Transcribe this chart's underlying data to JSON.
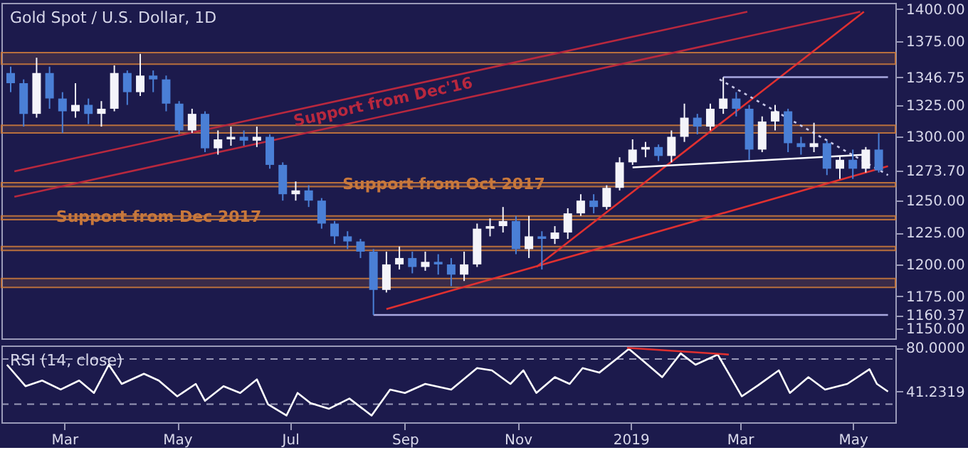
{
  "chart_data": [
    {
      "type": "candlestick",
      "title": "Gold Spot / U.S. Dollar, 1D",
      "tick_labels": "y",
      "x": [
        "2018-01-31",
        "2018-02-07",
        "2018-02-14",
        "2018-02-21",
        "2018-02-28",
        "2018-03-07",
        "2018-03-14",
        "2018-03-21",
        "2018-03-28",
        "2018-04-04",
        "2018-04-11",
        "2018-04-18",
        "2018-04-25",
        "2018-05-02",
        "2018-05-09",
        "2018-05-16",
        "2018-05-23",
        "2018-05-30",
        "2018-06-06",
        "2018-06-13",
        "2018-06-20",
        "2018-06-27",
        "2018-07-04",
        "2018-07-11",
        "2018-07-18",
        "2018-07-25",
        "2018-08-01",
        "2018-08-08",
        "2018-08-15",
        "2018-08-22",
        "2018-08-29",
        "2018-09-05",
        "2018-09-12",
        "2018-09-19",
        "2018-09-26",
        "2018-10-03",
        "2018-10-10",
        "2018-10-17",
        "2018-10-24",
        "2018-10-31",
        "2018-11-07",
        "2018-11-14",
        "2018-11-21",
        "2018-11-28",
        "2018-12-05",
        "2018-12-12",
        "2018-12-19",
        "2018-12-26",
        "2019-01-02",
        "2019-01-09",
        "2019-01-16",
        "2019-01-23",
        "2019-01-30",
        "2019-02-06",
        "2019-02-13",
        "2019-02-20",
        "2019-02-27",
        "2019-03-06",
        "2019-03-13",
        "2019-03-20",
        "2019-03-27",
        "2019-04-03",
        "2019-04-10",
        "2019-04-17",
        "2019-04-24",
        "2019-05-01",
        "2019-05-08",
        "2019-05-15"
      ],
      "ohlc": [
        [
          1350,
          1355,
          1335,
          1342
        ],
        [
          1342,
          1345,
          1308,
          1318
        ],
        [
          1318,
          1362,
          1315,
          1350
        ],
        [
          1350,
          1355,
          1322,
          1330
        ],
        [
          1330,
          1335,
          1303,
          1320
        ],
        [
          1320,
          1342,
          1315,
          1325
        ],
        [
          1325,
          1330,
          1310,
          1318
        ],
        [
          1318,
          1328,
          1308,
          1322
        ],
        [
          1322,
          1356,
          1320,
          1350
        ],
        [
          1350,
          1352,
          1325,
          1335
        ],
        [
          1335,
          1365,
          1332,
          1348
        ],
        [
          1348,
          1352,
          1335,
          1345
        ],
        [
          1345,
          1348,
          1320,
          1326
        ],
        [
          1326,
          1328,
          1302,
          1305
        ],
        [
          1305,
          1322,
          1303,
          1318
        ],
        [
          1318,
          1320,
          1288,
          1291
        ],
        [
          1291,
          1305,
          1286,
          1298
        ],
        [
          1298,
          1308,
          1293,
          1300
        ],
        [
          1300,
          1305,
          1293,
          1297
        ],
        [
          1297,
          1308,
          1292,
          1300
        ],
        [
          1300,
          1302,
          1275,
          1278
        ],
        [
          1278,
          1280,
          1250,
          1255
        ],
        [
          1255,
          1265,
          1250,
          1258
        ],
        [
          1258,
          1262,
          1245,
          1250
        ],
        [
          1250,
          1252,
          1228,
          1232
        ],
        [
          1232,
          1234,
          1216,
          1222
        ],
        [
          1222,
          1226,
          1212,
          1218
        ],
        [
          1218,
          1220,
          1205,
          1210
        ],
        [
          1210,
          1212,
          1160.37,
          1180
        ],
        [
          1180,
          1210,
          1178,
          1200
        ],
        [
          1200,
          1214,
          1196,
          1205
        ],
        [
          1205,
          1210,
          1193,
          1198
        ],
        [
          1198,
          1210,
          1195,
          1202
        ],
        [
          1202,
          1208,
          1192,
          1200
        ],
        [
          1200,
          1205,
          1183,
          1192
        ],
        [
          1192,
          1210,
          1187,
          1200
        ],
        [
          1200,
          1232,
          1198,
          1228
        ],
        [
          1228,
          1236,
          1222,
          1230
        ],
        [
          1230,
          1245,
          1225,
          1234
        ],
        [
          1234,
          1238,
          1208,
          1212
        ],
        [
          1212,
          1238,
          1205,
          1222
        ],
        [
          1222,
          1226,
          1196,
          1220
        ],
        [
          1220,
          1230,
          1216,
          1225
        ],
        [
          1225,
          1244,
          1220,
          1240
        ],
        [
          1240,
          1255,
          1238,
          1250
        ],
        [
          1250,
          1255,
          1240,
          1245
        ],
        [
          1245,
          1262,
          1243,
          1260
        ],
        [
          1260,
          1284,
          1258,
          1280
        ],
        [
          1280,
          1298,
          1278,
          1290
        ],
        [
          1290,
          1296,
          1284,
          1292
        ],
        [
          1292,
          1294,
          1281,
          1285
        ],
        [
          1285,
          1305,
          1280,
          1300
        ],
        [
          1300,
          1326,
          1296,
          1315
        ],
        [
          1315,
          1318,
          1302,
          1308
        ],
        [
          1308,
          1326,
          1305,
          1322
        ],
        [
          1322,
          1346.75,
          1318,
          1330
        ],
        [
          1330,
          1335,
          1316,
          1322
        ],
        [
          1322,
          1325,
          1282,
          1290
        ],
        [
          1290,
          1316,
          1288,
          1312
        ],
        [
          1312,
          1325,
          1305,
          1320
        ],
        [
          1320,
          1322,
          1288,
          1295
        ],
        [
          1295,
          1300,
          1286,
          1292
        ],
        [
          1292,
          1311,
          1288,
          1295
        ],
        [
          1295,
          1297,
          1270,
          1275
        ],
        [
          1275,
          1285,
          1267,
          1282
        ],
        [
          1282,
          1290,
          1267,
          1275
        ],
        [
          1275,
          1292,
          1272,
          1290
        ],
        [
          1290,
          1303,
          1272,
          1273.7
        ]
      ],
      "xlim": [
        "2018-01-26",
        "2019-05-24"
      ],
      "ylim": [
        1142,
        1405
      ],
      "yticks": [
        {
          "value": 1400,
          "label": "1400.00"
        },
        {
          "value": 1375,
          "label": "1375.00"
        },
        1346.75,
        {
          "value": 1325,
          "label": "1325.00"
        },
        {
          "value": 1300,
          "label": "1300.00"
        },
        {
          "value": 1273.7,
          "label": "1273.70"
        },
        {
          "value": 1250,
          "label": "1250.00"
        },
        {
          "value": 1225,
          "label": "1225.00"
        },
        {
          "value": 1200,
          "label": "1200.00"
        },
        {
          "value": 1175,
          "label": "1175.00"
        },
        1160.37,
        {
          "value": 1150,
          "label": "1150.00"
        }
      ],
      "bands": [
        {
          "axis": "y",
          "from": 1357,
          "to": 1366,
          "color": "#c8783c"
        },
        {
          "axis": "y",
          "from": 1303,
          "to": 1309,
          "color": "#c8783c"
        },
        {
          "axis": "y",
          "from": 1261,
          "to": 1264,
          "color": "#c8783c"
        },
        {
          "axis": "y",
          "from": 1235,
          "to": 1238,
          "color": "#c8783c"
        },
        {
          "axis": "y",
          "from": 1211,
          "to": 1214,
          "color": "#c8783c"
        },
        {
          "axis": "y",
          "from": 1182,
          "to": 1189,
          "color": "#c8783c"
        }
      ],
      "annotations": [
        {
          "text": "Support from Oct 2017",
          "x": "2018-09-22",
          "y": 1262.5
        },
        {
          "text": "Support from Dec 2017",
          "x": "2018-04-21",
          "y": 1236.5
        }
      ],
      "series": [
        {
          "type": "line",
          "name": "Support from Dec'16",
          "color": "#b8283e",
          "x": [
            "2018-02-02",
            "2019-03-05"
          ],
          "values": [
            1273,
            1398
          ]
        },
        {
          "type": "line",
          "color": "#b8283e",
          "x": [
            "2018-02-02",
            "2019-05-05"
          ],
          "values": [
            1253,
            1398
          ]
        },
        {
          "type": "line",
          "color": "#e03030",
          "x": [
            "2018-11-11",
            "2019-05-07"
          ],
          "values": [
            1198,
            1398
          ]
        },
        {
          "type": "line",
          "color": "#e03030",
          "x": [
            "2018-08-22",
            "2019-05-20"
          ],
          "values": [
            1165,
            1277
          ]
        },
        {
          "type": "line",
          "color": "#ffffff",
          "x": [
            "2019-01-02",
            "2019-05-08"
          ],
          "values": [
            1276,
            1286
          ]
        },
        {
          "type": "line",
          "color": "#c8c8e8",
          "line_style": "dotted",
          "x": [
            "2019-02-18",
            "2019-05-20"
          ],
          "values": [
            1345,
            1270
          ]
        },
        {
          "type": "line",
          "color": "#a9a9e0",
          "x": [
            "2019-02-20",
            "2019-05-20"
          ],
          "values": [
            1346.75,
            1346.75
          ]
        },
        {
          "type": "line",
          "color": "#a9a9e0",
          "x": [
            "2018-08-15",
            "2019-05-20"
          ],
          "values": [
            1160.37,
            1160.37
          ]
        }
      ]
    },
    {
      "type": "line",
      "title": "RSI (14, close)",
      "xlim": [
        "2018-01-26",
        "2019-05-24"
      ],
      "ylim": [
        14,
        82
      ],
      "xticks": [
        {
          "value": "2018-03-01",
          "label": "Mar"
        },
        {
          "value": "2018-05-01",
          "label": "May"
        },
        {
          "value": "2018-07-01",
          "label": "Jul"
        },
        {
          "value": "2018-09-01",
          "label": "Sep"
        },
        {
          "value": "2018-11-01",
          "label": "Nov"
        },
        {
          "value": "2019-01-01",
          "label": "2019"
        },
        {
          "value": "2019-03-01",
          "label": "Mar"
        },
        {
          "value": "2019-05-01",
          "label": "May"
        }
      ],
      "yticks": [
        {
          "value": 80,
          "label": "80.0000"
        },
        {
          "value": 41.2319,
          "label": "41.2319"
        }
      ],
      "ref_lines": [
        {
          "axis": "y",
          "value": 70,
          "color": "#9a9ab8",
          "line_style": "dashed"
        },
        {
          "axis": "y",
          "value": 30,
          "color": "#9a9ab8",
          "line_style": "dashed"
        }
      ],
      "series": [
        {
          "type": "line",
          "color": "#ffffff",
          "x": [
            "2018-01-29",
            "2018-02-08",
            "2018-02-17",
            "2018-02-27",
            "2018-03-09",
            "2018-03-17",
            "2018-03-25",
            "2018-04-01",
            "2018-04-13",
            "2018-04-21",
            "2018-05-01",
            "2018-05-11",
            "2018-05-16",
            "2018-05-26",
            "2018-06-04",
            "2018-06-13",
            "2018-06-19",
            "2018-06-29",
            "2018-07-05",
            "2018-07-12",
            "2018-07-22",
            "2018-08-02",
            "2018-08-14",
            "2018-08-24",
            "2018-09-01",
            "2018-09-12",
            "2018-09-26",
            "2018-10-10",
            "2018-10-18",
            "2018-10-28",
            "2018-11-04",
            "2018-11-11",
            "2018-11-21",
            "2018-11-29",
            "2018-12-06",
            "2018-12-15",
            "2018-12-25",
            "2018-12-31",
            "2019-01-08",
            "2019-01-18",
            "2019-01-28",
            "2019-02-05",
            "2019-02-17",
            "2019-02-23",
            "2019-03-02",
            "2019-03-11",
            "2019-03-22",
            "2019-03-28",
            "2019-04-07",
            "2019-04-16",
            "2019-04-28",
            "2019-05-10",
            "2019-05-14",
            "2019-05-20"
          ],
          "values": [
            65,
            46,
            51,
            43,
            51,
            40,
            65,
            48,
            57,
            51,
            37,
            48,
            33,
            46,
            40,
            52,
            30,
            20,
            40,
            31,
            26,
            35,
            20,
            43,
            40,
            48,
            43,
            62,
            60,
            48,
            60,
            40,
            54,
            48,
            62,
            58,
            71,
            79,
            68,
            54,
            75,
            65,
            74,
            57,
            37,
            47,
            60,
            40,
            54,
            43,
            48,
            61,
            48,
            41.2319
          ]
        },
        {
          "type": "line",
          "color": "#e03030",
          "x": [
            "2018-12-30",
            "2019-02-23"
          ],
          "values": [
            80,
            74
          ]
        }
      ]
    }
  ]
}
